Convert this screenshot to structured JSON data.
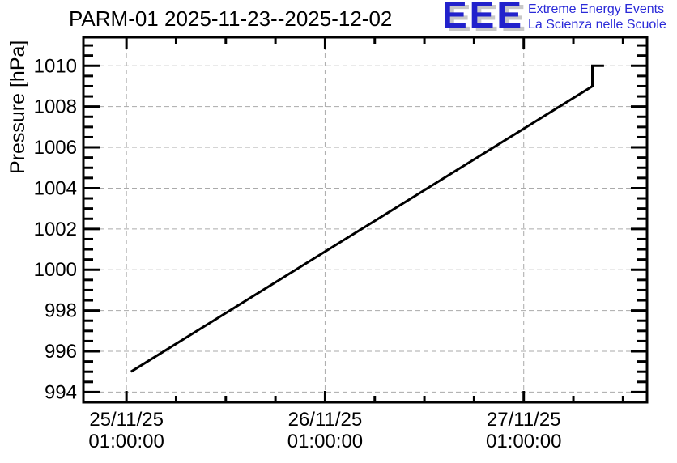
{
  "page": {
    "background": "#ffffff"
  },
  "header": {
    "title": "PARM-01 2025-11-23--2025-12-02"
  },
  "logo": {
    "acronym": "EEE",
    "tagline_line1": "Extreme Energy Events",
    "tagline_line2": "La Scienza nelle Scuole",
    "color_blue": "#2222cc",
    "shadow_color": "#c8c8c8"
  },
  "chart_data": {
    "type": "line",
    "title": "PARM-01 2025-11-23--2025-12-02",
    "xlabel": "",
    "ylabel": "Pressure [hPa]",
    "x_unit": "hours since 25/11/25 01:00:00",
    "xlim": [
      -5.2,
      62.9
    ],
    "ylim": [
      993.5,
      1011.4
    ],
    "grid": true,
    "grid_style": "dashed",
    "grid_color": "#aaaaaa",
    "axis_color": "#000000",
    "line_color": "#000000",
    "legend": "none",
    "x_major_ticks": [
      {
        "hours": 0,
        "label": [
          "25/11/25",
          "01:00:00"
        ]
      },
      {
        "hours": 24,
        "label": [
          "26/11/25",
          "01:00:00"
        ]
      },
      {
        "hours": 48,
        "label": [
          "27/11/25",
          "01:00:00"
        ]
      }
    ],
    "x_minor_step_hours": 6,
    "y_major_ticks": [
      994,
      996,
      998,
      1000,
      1002,
      1004,
      1006,
      1008,
      1010
    ],
    "y_minor_step": 0.5,
    "series": [
      {
        "name": "pressure",
        "points_hours_hpa": [
          [
            0.55,
            995.0
          ],
          [
            56.3,
            1009.0
          ],
          [
            56.3,
            1010.0
          ],
          [
            57.7,
            1010.0
          ]
        ]
      }
    ]
  }
}
